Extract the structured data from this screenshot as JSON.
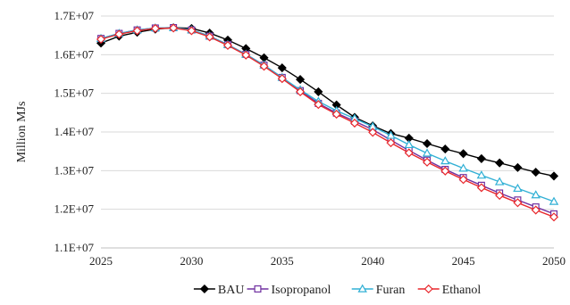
{
  "chart_data": {
    "type": "line",
    "ylabel": "Million MJs",
    "xlim": [
      2025,
      2050
    ],
    "ylim": [
      11000000,
      17000000
    ],
    "x_ticks": [
      2025,
      2030,
      2035,
      2040,
      2045,
      2050
    ],
    "x_tick_labels": [
      "2025",
      "2030",
      "2035",
      "2040",
      "2045",
      "2050"
    ],
    "y_ticks": [
      11000000,
      12000000,
      13000000,
      14000000,
      15000000,
      16000000,
      17000000
    ],
    "y_tick_labels": [
      "1.1E+07",
      "1.2E+07",
      "1.3E+07",
      "1.4E+07",
      "1.5E+07",
      "1.6E+07",
      "1.7E+07"
    ],
    "grid": "horizontal",
    "legend_position": "bottom",
    "x": [
      2025,
      2026,
      2027,
      2028,
      2029,
      2030,
      2031,
      2032,
      2033,
      2034,
      2035,
      2036,
      2037,
      2038,
      2039,
      2040,
      2041,
      2042,
      2043,
      2044,
      2045,
      2046,
      2047,
      2048,
      2049,
      2050
    ],
    "series": [
      {
        "name": "BAU",
        "color": "#000000",
        "marker": "diamond-filled",
        "values": [
          16300000,
          16480000,
          16580000,
          16660000,
          16700000,
          16680000,
          16560000,
          16380000,
          16160000,
          15920000,
          15660000,
          15360000,
          15040000,
          14700000,
          14380000,
          14160000,
          13960000,
          13840000,
          13700000,
          13560000,
          13440000,
          13310000,
          13200000,
          13080000,
          12960000,
          12860000
        ]
      },
      {
        "name": "Isopropanol",
        "color": "#7030a0",
        "marker": "square-open",
        "values": [
          16420000,
          16550000,
          16640000,
          16690000,
          16700000,
          16640000,
          16480000,
          16260000,
          16010000,
          15730000,
          15410000,
          15070000,
          14740000,
          14490000,
          14280000,
          14060000,
          13790000,
          13520000,
          13270000,
          13030000,
          12820000,
          12620000,
          12420000,
          12240000,
          12060000,
          11880000
        ]
      },
      {
        "name": "Furan",
        "color": "#31b0d5",
        "marker": "triangle-open",
        "values": [
          16420000,
          16550000,
          16640000,
          16690000,
          16700000,
          16640000,
          16480000,
          16260000,
          16010000,
          15730000,
          15410000,
          15090000,
          14790000,
          14550000,
          14350000,
          14140000,
          13910000,
          13670000,
          13450000,
          13250000,
          13060000,
          12880000,
          12710000,
          12540000,
          12370000,
          12200000
        ]
      },
      {
        "name": "Ethanol",
        "color": "#e8272c",
        "marker": "diamond-open",
        "values": [
          16400000,
          16530000,
          16620000,
          16680000,
          16690000,
          16620000,
          16460000,
          16240000,
          15990000,
          15700000,
          15380000,
          15040000,
          14710000,
          14460000,
          14230000,
          13990000,
          13720000,
          13460000,
          13220000,
          12990000,
          12770000,
          12560000,
          12360000,
          12170000,
          11980000,
          11800000
        ]
      }
    ]
  }
}
